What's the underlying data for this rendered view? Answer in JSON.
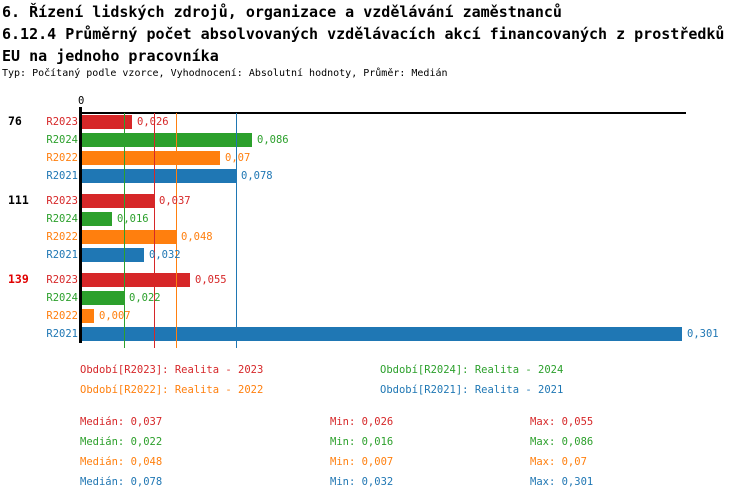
{
  "header": {
    "title_line1": "6. Řízení lidských zdrojů, organizace a vzdělávání zaměstnanců",
    "title_line2": "6.12.4 Průměrný počet absolvovaných vzdělávacích akcí financovaných z prostředků",
    "title_line3": "EU na jednoho pracovníka",
    "subtitle": "Typ: Počítaný podle vzorce, Vyhodnocení: Absolutní hodnoty, Průměr: Medián"
  },
  "colors": {
    "R2023": "#d62728",
    "R2024": "#2ca02c",
    "R2022": "#ff7f0e",
    "R2021": "#1f77b4",
    "highlight": "#e00000",
    "text": "#000000"
  },
  "axis": {
    "zero_label": "0"
  },
  "chart_data": {
    "type": "bar",
    "orientation": "horizontal",
    "title": "6.12.4 Průměrný počet absolvovaných vzdělávacích akcí financovaných z prostředků EU na jednoho pracovníka",
    "xlabel": "",
    "ylabel": "",
    "xlim": [
      0,
      0.303
    ],
    "grid": false,
    "legend_position": "bottom",
    "series_order": [
      "R2023",
      "R2024",
      "R2022",
      "R2021"
    ],
    "groups": [
      {
        "label": "76",
        "highlight": false,
        "bars": [
          {
            "series": "R2023",
            "value": 0.026,
            "value_display": "0,026"
          },
          {
            "series": "R2024",
            "value": 0.086,
            "value_display": "0,086"
          },
          {
            "series": "R2022",
            "value": 0.07,
            "value_display": "0,07"
          },
          {
            "series": "R2021",
            "value": 0.078,
            "value_display": "0,078"
          }
        ]
      },
      {
        "label": "111",
        "highlight": false,
        "bars": [
          {
            "series": "R2023",
            "value": 0.037,
            "value_display": "0,037"
          },
          {
            "series": "R2024",
            "value": 0.016,
            "value_display": "0,016"
          },
          {
            "series": "R2022",
            "value": 0.048,
            "value_display": "0,048"
          },
          {
            "series": "R2021",
            "value": 0.032,
            "value_display": "0,032"
          }
        ]
      },
      {
        "label": "139",
        "highlight": true,
        "bars": [
          {
            "series": "R2023",
            "value": 0.055,
            "value_display": "0,055"
          },
          {
            "series": "R2024",
            "value": 0.022,
            "value_display": "0,022"
          },
          {
            "series": "R2022",
            "value": 0.007,
            "value_display": "0,007"
          },
          {
            "series": "R2021",
            "value": 0.301,
            "value_display": "0,301"
          }
        ]
      }
    ],
    "legend": [
      {
        "series": "R2023",
        "label": "Období[R2023]: Realita - 2023"
      },
      {
        "series": "R2024",
        "label": "Období[R2024]: Realita - 2024"
      },
      {
        "series": "R2022",
        "label": "Období[R2022]: Realita - 2022"
      },
      {
        "series": "R2021",
        "label": "Období[R2021]: Realita - 2021"
      }
    ],
    "stat_labels": {
      "median": "Medián",
      "min": "Min",
      "max": "Max"
    },
    "stats": [
      {
        "series": "R2023",
        "median": 0.037,
        "median_display": "0,037",
        "min_display": "0,026",
        "max_display": "0,055"
      },
      {
        "series": "R2024",
        "median": 0.022,
        "median_display": "0,022",
        "min_display": "0,016",
        "max_display": "0,086"
      },
      {
        "series": "R2022",
        "median": 0.048,
        "median_display": "0,048",
        "min_display": "0,007",
        "max_display": "0,07"
      },
      {
        "series": "R2021",
        "median": 0.078,
        "median_display": "0,078",
        "min_display": "0,032",
        "max_display": "0,301"
      }
    ]
  }
}
